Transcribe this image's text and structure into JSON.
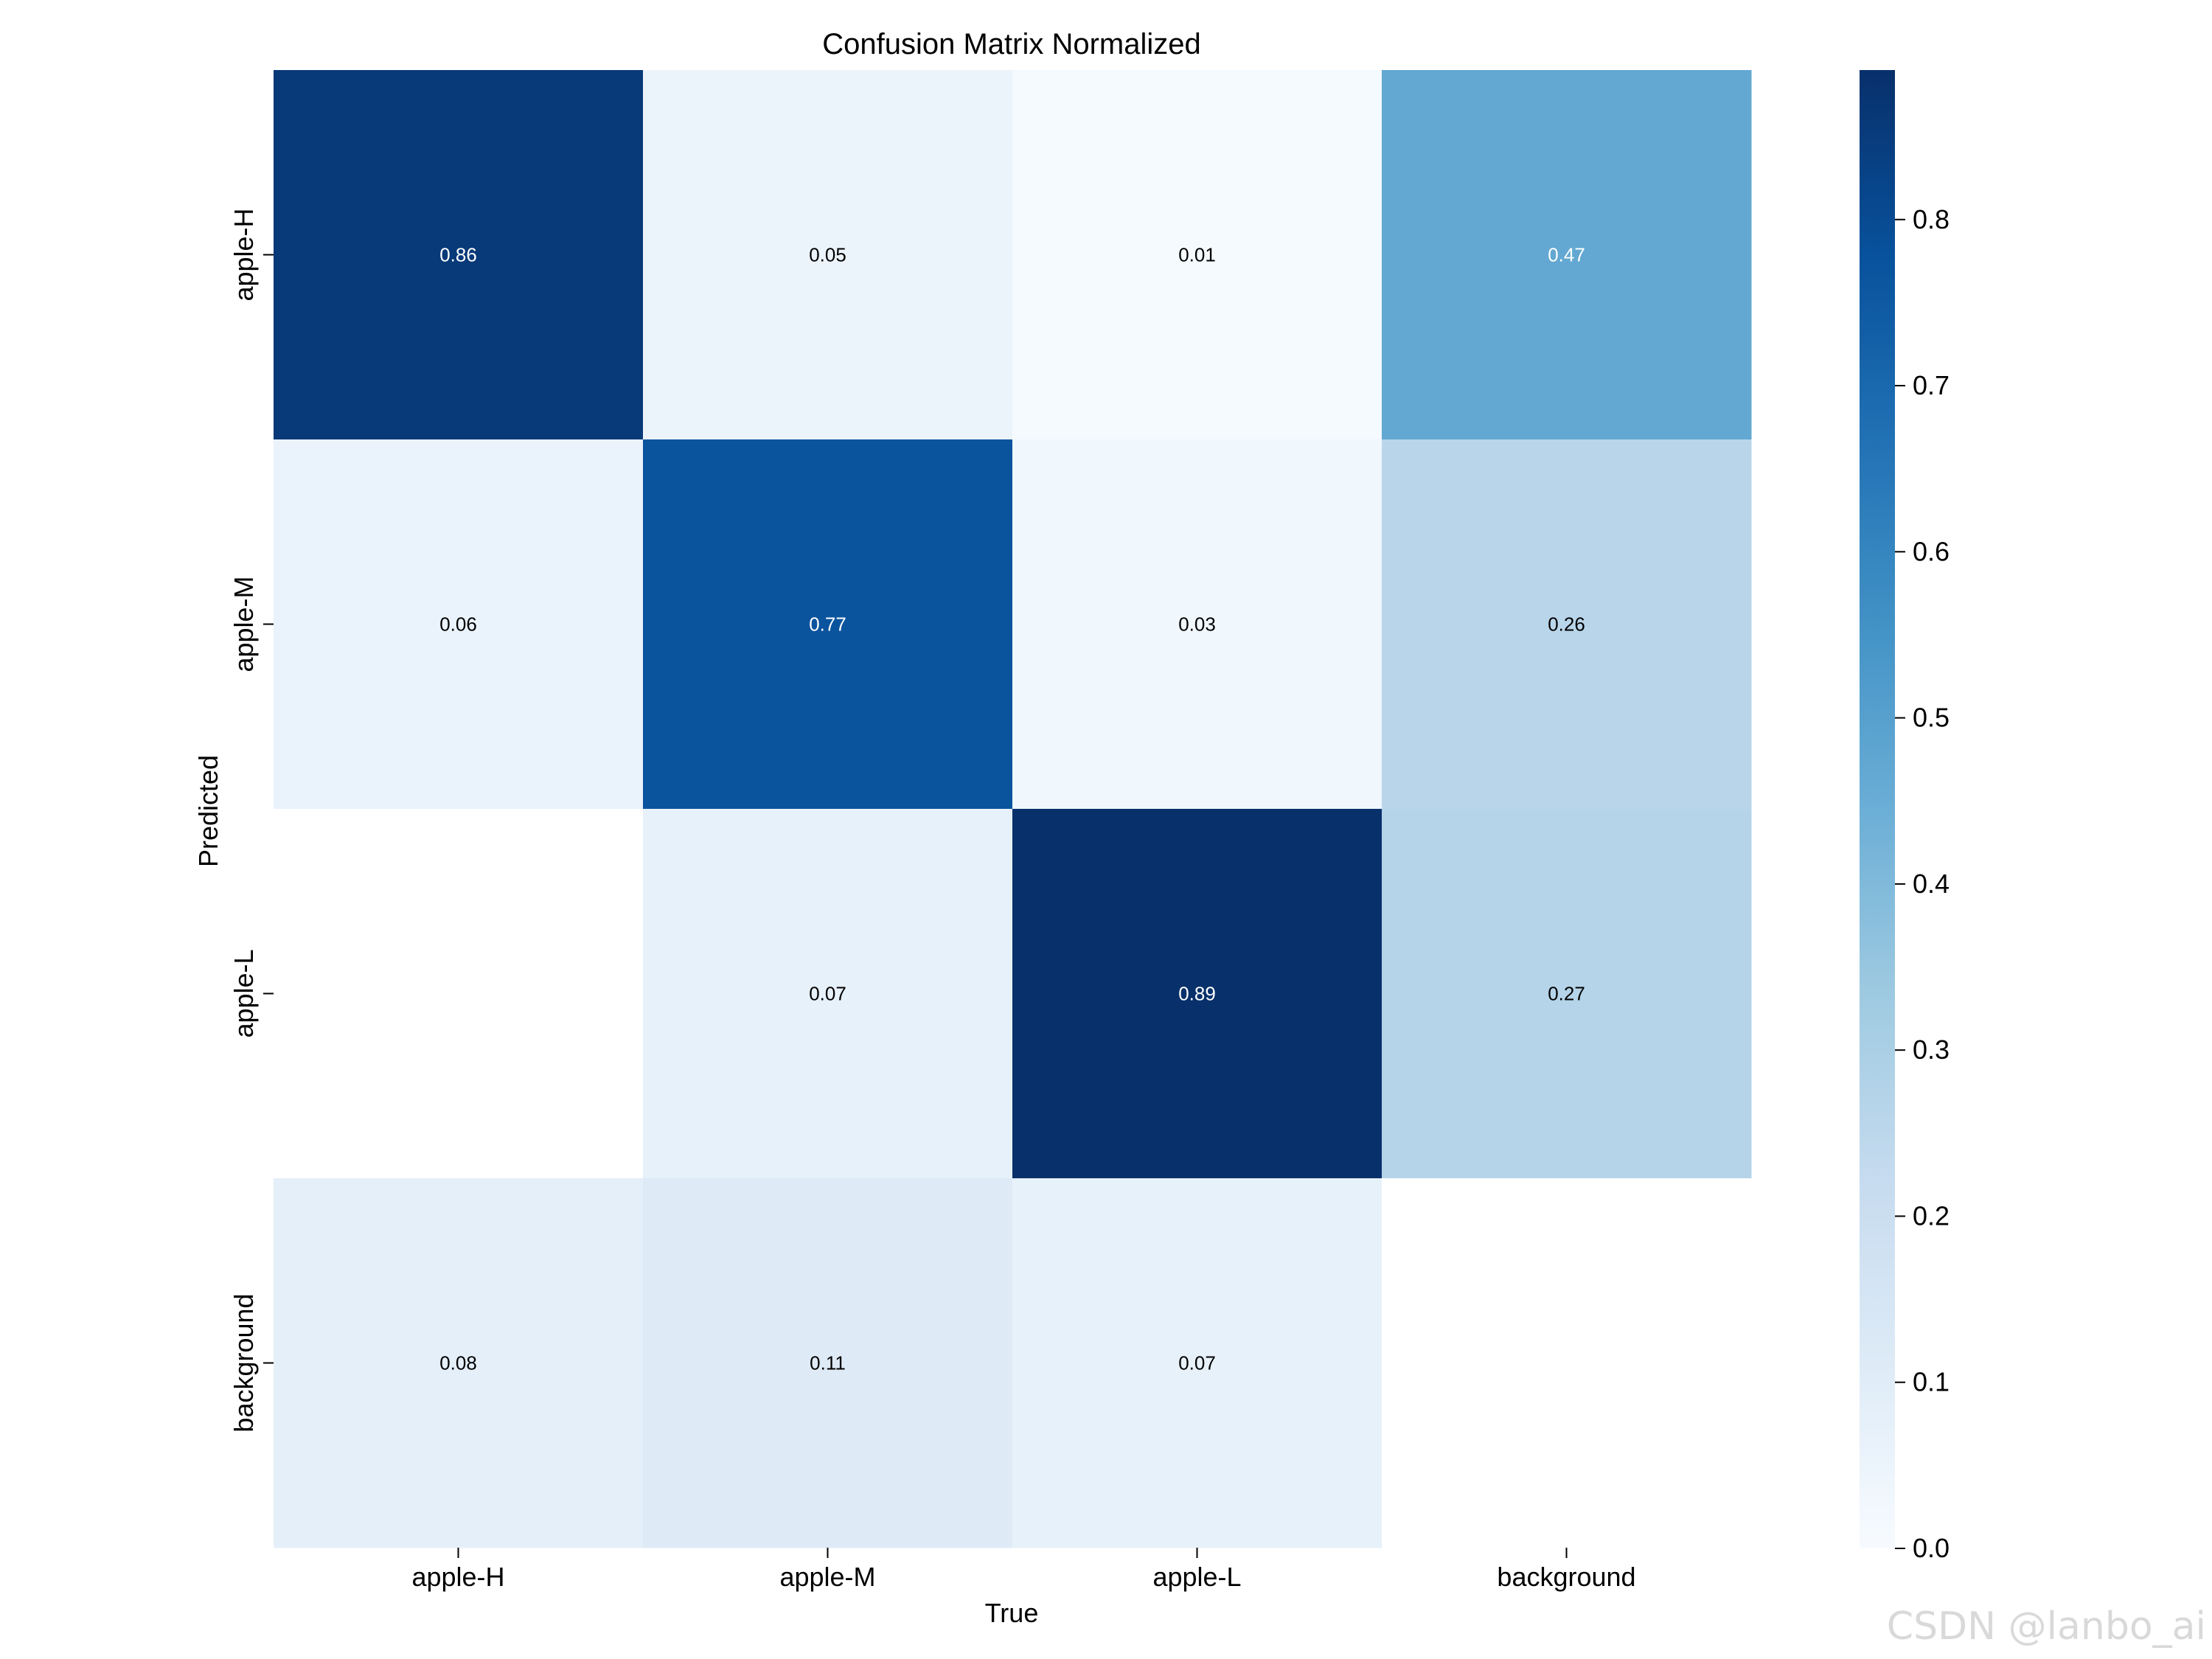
{
  "chart_data": {
    "type": "heatmap",
    "title": "Confusion Matrix Normalized",
    "xlabel": "True",
    "ylabel": "Predicted",
    "x_categories": [
      "apple-H",
      "apple-M",
      "apple-L",
      "background"
    ],
    "y_categories": [
      "apple-H",
      "apple-M",
      "apple-L",
      "background"
    ],
    "values": [
      [
        0.86,
        0.05,
        0.01,
        0.47
      ],
      [
        0.06,
        0.77,
        0.03,
        0.26
      ],
      [
        null,
        0.07,
        0.89,
        0.27
      ],
      [
        0.08,
        0.11,
        0.07,
        null
      ]
    ],
    "colormap": "Blues",
    "colorbar": {
      "range": [
        0.0,
        0.89
      ],
      "ticks": [
        "0.0",
        "0.1",
        "0.2",
        "0.3",
        "0.4",
        "0.5",
        "0.6",
        "0.7",
        "0.8"
      ]
    }
  },
  "watermark": "CSDN @lanbo_ai"
}
